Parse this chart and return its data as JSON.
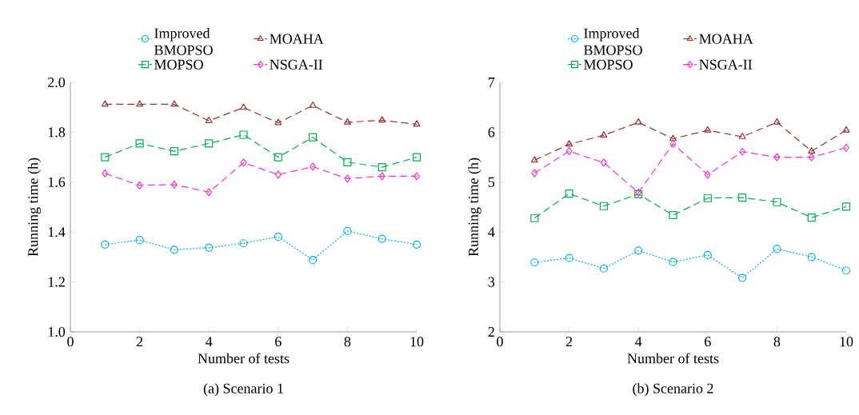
{
  "chart_data": [
    {
      "type": "line",
      "title": "(a) Scenario 1",
      "xlabel": "Number of tests",
      "ylabel": "Running time (h)",
      "xlim": [
        0,
        10
      ],
      "xticks": [
        0,
        2,
        4,
        6,
        8,
        10
      ],
      "ylim": [
        1.0,
        2.0
      ],
      "yticks": [
        {
          "value": 1.0,
          "label": "1.0"
        },
        {
          "value": 1.2,
          "label": "1.2"
        },
        {
          "value": 1.4,
          "label": "1.4"
        },
        {
          "value": 1.6,
          "label": "1.6"
        },
        {
          "value": 1.8,
          "label": "1.8"
        },
        {
          "value": 2.0,
          "label": "2.0"
        }
      ],
      "legend": "top",
      "x": [
        1,
        2,
        3,
        4,
        5,
        6,
        7,
        8,
        9,
        10
      ],
      "series": [
        {
          "name": "Improved BMOPSO",
          "color": "#00b0f0",
          "marker": "circle",
          "line_style": "dotted",
          "values": [
            1.35,
            1.368,
            1.329,
            1.337,
            1.355,
            1.381,
            1.288,
            1.404,
            1.373,
            1.35
          ]
        },
        {
          "name": "MOAHA",
          "color": "#943634",
          "marker": "triangle",
          "line_style": "dashed",
          "values": [
            1.912,
            1.912,
            1.912,
            1.846,
            1.899,
            1.838,
            1.907,
            1.84,
            1.848,
            1.832
          ]
        },
        {
          "name": "MOPSO",
          "color": "#00b050",
          "marker": "square",
          "line_style": "dashed",
          "values": [
            1.7,
            1.755,
            1.724,
            1.755,
            1.79,
            1.7,
            1.78,
            1.68,
            1.66,
            1.7
          ]
        },
        {
          "name": "NSGA-II",
          "color": "#ff33cc",
          "marker": "diamond",
          "line_style": "dashed",
          "values": [
            1.635,
            1.587,
            1.59,
            1.56,
            1.678,
            1.63,
            1.662,
            1.614,
            1.624,
            1.624
          ]
        }
      ]
    },
    {
      "type": "line",
      "title": "(b) Scenario 2",
      "xlabel": "Number of tests",
      "ylabel": "Running time (h)",
      "xlim": [
        0,
        10
      ],
      "xticks": [
        0,
        2,
        4,
        6,
        8,
        10
      ],
      "ylim": [
        2,
        7
      ],
      "yticks": [
        2,
        3,
        4,
        5,
        6,
        7
      ],
      "legend": "top",
      "x": [
        1,
        2,
        3,
        4,
        5,
        6,
        7,
        8,
        9,
        10
      ],
      "series": [
        {
          "name": "Improved BMOPSO",
          "color": "#00b0f0",
          "marker": "circle",
          "line_style": "dotted",
          "values": [
            3.39,
            3.48,
            3.27,
            3.63,
            3.4,
            3.54,
            3.08,
            3.66,
            3.5,
            3.23
          ]
        },
        {
          "name": "MOAHA",
          "color": "#943634",
          "marker": "triangle",
          "line_style": "dashed",
          "values": [
            5.44,
            5.76,
            5.94,
            6.2,
            5.87,
            6.04,
            5.91,
            6.2,
            5.62,
            6.04
          ]
        },
        {
          "name": "MOPSO",
          "color": "#00b050",
          "marker": "square",
          "line_style": "dashed",
          "values": [
            4.28,
            4.77,
            4.52,
            4.76,
            4.34,
            4.68,
            4.69,
            4.6,
            4.29,
            4.51
          ]
        },
        {
          "name": "NSGA-II",
          "color": "#ff33cc",
          "marker": "diamond",
          "line_style": "dashed",
          "values": [
            5.18,
            5.62,
            5.39,
            4.79,
            5.77,
            5.15,
            5.61,
            5.5,
            5.5,
            5.69
          ]
        }
      ]
    }
  ]
}
